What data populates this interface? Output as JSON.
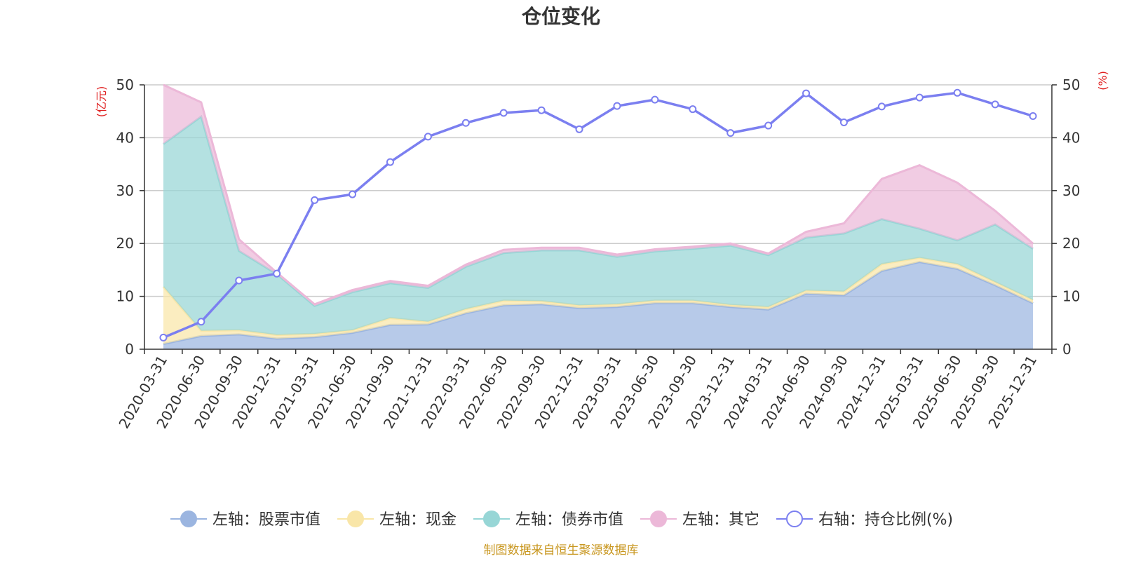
{
  "chart_data": {
    "type": "area",
    "title": "仓位变化",
    "left_axis_unit": "(亿元)",
    "right_axis_unit": "(%)",
    "ylim_left": [
      0,
      50
    ],
    "ylim_right": [
      0,
      50
    ],
    "y_ticks": [
      0,
      10,
      20,
      30,
      40,
      50
    ],
    "categories": [
      "2020-03-31",
      "2020-06-30",
      "2020-09-30",
      "2020-12-31",
      "2021-03-31",
      "2021-06-30",
      "2021-09-30",
      "2021-12-31",
      "2022-03-31",
      "2022-06-30",
      "2022-09-30",
      "2022-12-31",
      "2023-03-31",
      "2023-06-30",
      "2023-09-30",
      "2023-12-31",
      "2024-03-31",
      "2024-06-30",
      "2024-09-30",
      "2024-12-31",
      "2025-03-31",
      "2025-06-30",
      "2025-09-30",
      "2025-12-31"
    ],
    "stacked_series": [
      {
        "name": "左轴：股票市值",
        "color": "#9bb5e0",
        "values": [
          1.0,
          2.5,
          2.8,
          2.0,
          2.3,
          3.1,
          4.6,
          4.7,
          6.8,
          8.3,
          8.5,
          7.8,
          8.0,
          8.7,
          8.7,
          8.0,
          7.5,
          10.5,
          10.2,
          14.8,
          16.5,
          15.2,
          12.1,
          8.7
        ]
      },
      {
        "name": "左轴：现金",
        "color": "#f9e6a8",
        "values": [
          10.8,
          1.0,
          0.8,
          0.7,
          0.6,
          0.5,
          1.3,
          0.5,
          0.8,
          0.9,
          0.6,
          0.5,
          0.5,
          0.5,
          0.5,
          0.4,
          0.5,
          0.6,
          0.7,
          1.3,
          0.8,
          0.9,
          0.6,
          0.6
        ]
      },
      {
        "name": "左轴：债券市值",
        "color": "#97d6d6",
        "values": [
          27.0,
          40.5,
          15.0,
          11.5,
          5.3,
          7.2,
          6.6,
          6.4,
          8.0,
          9.0,
          9.6,
          10.4,
          9.0,
          9.3,
          9.8,
          11.2,
          9.8,
          10.0,
          11.0,
          8.5,
          5.5,
          4.5,
          10.9,
          9.7
        ]
      },
      {
        "name": "左轴：其它",
        "color": "#ecb8d8",
        "values": [
          11.2,
          2.7,
          2.2,
          0.3,
          0.3,
          0.4,
          0.4,
          0.4,
          0.4,
          0.6,
          0.5,
          0.5,
          0.4,
          0.4,
          0.4,
          0.4,
          0.3,
          1.1,
          1.9,
          7.6,
          12.0,
          10.9,
          2.6,
          1.0
        ]
      }
    ],
    "line_series": {
      "name": "右轴：持仓比例(%)",
      "color": "#7b7ff0",
      "values": [
        2.2,
        5.2,
        13.0,
        14.3,
        28.2,
        29.3,
        35.4,
        40.2,
        42.8,
        44.7,
        45.2,
        41.6,
        46.0,
        47.2,
        45.4,
        40.9,
        42.3,
        48.4,
        42.9,
        45.9,
        47.6,
        48.5,
        46.3,
        44.1
      ]
    },
    "legend_position": "bottom-center"
  },
  "source_note": "制图数据来自恒生聚源数据库"
}
